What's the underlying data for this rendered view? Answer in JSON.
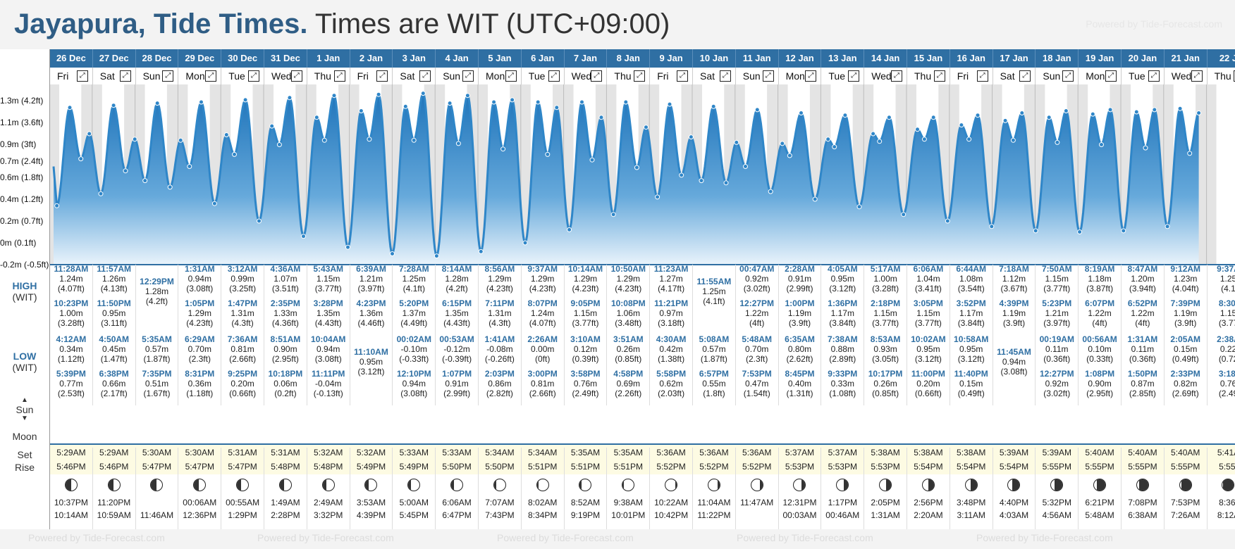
{
  "header": {
    "location": "Jayapura, Tide Times.",
    "timezone": "Times are WIT (UTC+09:00)",
    "powered_by": "Powered by Tide-Forecast.com"
  },
  "labels": {
    "high": "HIGH",
    "low": "LOW",
    "wit": "(WIT)",
    "sun": "Sun",
    "moon": "Moon",
    "set": "Set",
    "rise": "Rise"
  },
  "chart_data": {
    "type": "area",
    "title": "",
    "y_ticks": [
      "-0.2m (-0.5ft)",
      "0m (0.1ft)",
      "0.2m (0.7ft)",
      "0.4m (1.2ft)",
      "0.6m (1.8ft)",
      "0.7m (2.4ft)",
      "0.9m (3ft)",
      "1.1m (3.6ft)",
      "1.3m (4.2ft)"
    ],
    "ylim": [
      -0.2,
      1.4
    ],
    "grid": true,
    "color": "#2f86c8"
  },
  "days": [
    {
      "date": "26 Dec",
      "dow": "Fri",
      "tides": [
        {
          "k": "H",
          "t": "11:28AM",
          "m": "1.24m",
          "f": "(4.07ft)"
        },
        {
          "k": "H",
          "t": "10:23PM",
          "m": "1.00m",
          "f": "(3.28ft)"
        },
        {
          "k": "L",
          "t": "4:12AM",
          "m": "0.34m",
          "f": "(1.12ft)"
        },
        {
          "k": "L",
          "t": "5:39PM",
          "m": "0.77m",
          "f": "(2.53ft)"
        }
      ],
      "sunrise": "5:29AM",
      "sunset": "5:46PM",
      "moonset": "10:37PM",
      "moonrise": "10:14AM"
    },
    {
      "date": "27 Dec",
      "dow": "Sat",
      "tides": [
        {
          "k": "H",
          "t": "11:57AM",
          "m": "1.26m",
          "f": "(4.13ft)"
        },
        {
          "k": "H",
          "t": "11:50PM",
          "m": "0.95m",
          "f": "(3.11ft)"
        },
        {
          "k": "L",
          "t": "4:50AM",
          "m": "0.45m",
          "f": "(1.47ft)"
        },
        {
          "k": "L",
          "t": "6:38PM",
          "m": "0.66m",
          "f": "(2.17ft)"
        }
      ],
      "sunrise": "5:29AM",
      "sunset": "5:46PM",
      "moonset": "11:20PM",
      "moonrise": "10:59AM"
    },
    {
      "date": "28 Dec",
      "dow": "Sun",
      "tides": [
        {
          "k": "H",
          "t": "12:29PM",
          "m": "1.28m",
          "f": "(4.2ft)"
        },
        {
          "k": "L",
          "t": "5:35AM",
          "m": "0.57m",
          "f": "(1.87ft)"
        },
        {
          "k": "L",
          "t": "7:35PM",
          "m": "0.51m",
          "f": "(1.67ft)"
        }
      ],
      "sunrise": "5:30AM",
      "sunset": "5:47PM",
      "moonset": "",
      "moonrise": "11:46AM"
    },
    {
      "date": "29 Dec",
      "dow": "Mon",
      "tides": [
        {
          "k": "H",
          "t": "1:31AM",
          "m": "0.94m",
          "f": "(3.08ft)"
        },
        {
          "k": "H",
          "t": "1:05PM",
          "m": "1.29m",
          "f": "(4.23ft)"
        },
        {
          "k": "L",
          "t": "6:29AM",
          "m": "0.70m",
          "f": "(2.3ft)"
        },
        {
          "k": "L",
          "t": "8:31PM",
          "m": "0.36m",
          "f": "(1.18ft)"
        }
      ],
      "sunrise": "5:30AM",
      "sunset": "5:47PM",
      "moonset": "00:06AM",
      "moonrise": "12:36PM"
    },
    {
      "date": "30 Dec",
      "dow": "Tue",
      "tides": [
        {
          "k": "H",
          "t": "3:12AM",
          "m": "0.99m",
          "f": "(3.25ft)"
        },
        {
          "k": "H",
          "t": "1:47PM",
          "m": "1.31m",
          "f": "(4.3ft)"
        },
        {
          "k": "L",
          "t": "7:36AM",
          "m": "0.81m",
          "f": "(2.66ft)"
        },
        {
          "k": "L",
          "t": "9:25PM",
          "m": "0.20m",
          "f": "(0.66ft)"
        }
      ],
      "sunrise": "5:31AM",
      "sunset": "5:47PM",
      "moonset": "00:55AM",
      "moonrise": "1:29PM"
    },
    {
      "date": "31 Dec",
      "dow": "Wed",
      "tides": [
        {
          "k": "H",
          "t": "4:36AM",
          "m": "1.07m",
          "f": "(3.51ft)"
        },
        {
          "k": "H",
          "t": "2:35PM",
          "m": "1.33m",
          "f": "(4.36ft)"
        },
        {
          "k": "L",
          "t": "8:51AM",
          "m": "0.90m",
          "f": "(2.95ft)"
        },
        {
          "k": "L",
          "t": "10:18PM",
          "m": "0.06m",
          "f": "(0.2ft)"
        }
      ],
      "sunrise": "5:31AM",
      "sunset": "5:48PM",
      "moonset": "1:49AM",
      "moonrise": "2:28PM"
    },
    {
      "date": "1 Jan",
      "dow": "Thu",
      "tides": [
        {
          "k": "H",
          "t": "5:43AM",
          "m": "1.15m",
          "f": "(3.77ft)"
        },
        {
          "k": "H",
          "t": "3:28PM",
          "m": "1.35m",
          "f": "(4.43ft)"
        },
        {
          "k": "L",
          "t": "10:04AM",
          "m": "0.94m",
          "f": "(3.08ft)"
        },
        {
          "k": "L",
          "t": "11:11PM",
          "m": "-0.04m",
          "f": "(-0.13ft)"
        }
      ],
      "sunrise": "5:32AM",
      "sunset": "5:48PM",
      "moonset": "2:49AM",
      "moonrise": "3:32PM"
    },
    {
      "date": "2 Jan",
      "dow": "Fri",
      "tides": [
        {
          "k": "H",
          "t": "6:39AM",
          "m": "1.21m",
          "f": "(3.97ft)"
        },
        {
          "k": "H",
          "t": "4:23PM",
          "m": "1.36m",
          "f": "(4.46ft)"
        },
        {
          "k": "L",
          "t": "11:10AM",
          "m": "0.95m",
          "f": "(3.12ft)"
        }
      ],
      "sunrise": "5:32AM",
      "sunset": "5:49PM",
      "moonset": "3:53AM",
      "moonrise": "4:39PM"
    },
    {
      "date": "3 Jan",
      "dow": "Sat",
      "tides": [
        {
          "k": "H",
          "t": "7:28AM",
          "m": "1.25m",
          "f": "(4.1ft)"
        },
        {
          "k": "H",
          "t": "5:20PM",
          "m": "1.37m",
          "f": "(4.49ft)"
        },
        {
          "k": "L",
          "t": "00:02AM",
          "m": "-0.10m",
          "f": "(-0.33ft)"
        },
        {
          "k": "L",
          "t": "12:10PM",
          "m": "0.94m",
          "f": "(3.08ft)"
        }
      ],
      "sunrise": "5:33AM",
      "sunset": "5:49PM",
      "moonset": "5:00AM",
      "moonrise": "5:45PM"
    },
    {
      "date": "4 Jan",
      "dow": "Sun",
      "tides": [
        {
          "k": "H",
          "t": "8:14AM",
          "m": "1.28m",
          "f": "(4.2ft)"
        },
        {
          "k": "H",
          "t": "6:15PM",
          "m": "1.35m",
          "f": "(4.43ft)"
        },
        {
          "k": "L",
          "t": "00:53AM",
          "m": "-0.12m",
          "f": "(-0.39ft)"
        },
        {
          "k": "L",
          "t": "1:07PM",
          "m": "0.91m",
          "f": "(2.99ft)"
        }
      ],
      "sunrise": "5:33AM",
      "sunset": "5:50PM",
      "moonset": "6:06AM",
      "moonrise": "6:47PM"
    },
    {
      "date": "5 Jan",
      "dow": "Mon",
      "tides": [
        {
          "k": "H",
          "t": "8:56AM",
          "m": "1.29m",
          "f": "(4.23ft)"
        },
        {
          "k": "H",
          "t": "7:11PM",
          "m": "1.31m",
          "f": "(4.3ft)"
        },
        {
          "k": "L",
          "t": "1:41AM",
          "m": "-0.08m",
          "f": "(-0.26ft)"
        },
        {
          "k": "L",
          "t": "2:03PM",
          "m": "0.86m",
          "f": "(2.82ft)"
        }
      ],
      "sunrise": "5:34AM",
      "sunset": "5:50PM",
      "moonset": "7:07AM",
      "moonrise": "7:43PM"
    },
    {
      "date": "6 Jan",
      "dow": "Tue",
      "tides": [
        {
          "k": "H",
          "t": "9:37AM",
          "m": "1.29m",
          "f": "(4.23ft)"
        },
        {
          "k": "H",
          "t": "8:07PM",
          "m": "1.24m",
          "f": "(4.07ft)"
        },
        {
          "k": "L",
          "t": "2:26AM",
          "m": "0.00m",
          "f": "(0ft)"
        },
        {
          "k": "L",
          "t": "3:00PM",
          "m": "0.81m",
          "f": "(2.66ft)"
        }
      ],
      "sunrise": "5:34AM",
      "sunset": "5:51PM",
      "moonset": "8:02AM",
      "moonrise": "8:34PM"
    },
    {
      "date": "7 Jan",
      "dow": "Wed",
      "tides": [
        {
          "k": "H",
          "t": "10:14AM",
          "m": "1.29m",
          "f": "(4.23ft)"
        },
        {
          "k": "H",
          "t": "9:05PM",
          "m": "1.15m",
          "f": "(3.77ft)"
        },
        {
          "k": "L",
          "t": "3:10AM",
          "m": "0.12m",
          "f": "(0.39ft)"
        },
        {
          "k": "L",
          "t": "3:58PM",
          "m": "0.76m",
          "f": "(2.49ft)"
        }
      ],
      "sunrise": "5:35AM",
      "sunset": "5:51PM",
      "moonset": "8:52AM",
      "moonrise": "9:19PM"
    },
    {
      "date": "8 Jan",
      "dow": "Thu",
      "tides": [
        {
          "k": "H",
          "t": "10:50AM",
          "m": "1.29m",
          "f": "(4.23ft)"
        },
        {
          "k": "H",
          "t": "10:08PM",
          "m": "1.06m",
          "f": "(3.48ft)"
        },
        {
          "k": "L",
          "t": "3:51AM",
          "m": "0.26m",
          "f": "(0.85ft)"
        },
        {
          "k": "L",
          "t": "4:58PM",
          "m": "0.69m",
          "f": "(2.26ft)"
        }
      ],
      "sunrise": "5:35AM",
      "sunset": "5:51PM",
      "moonset": "9:38AM",
      "moonrise": "10:01PM"
    },
    {
      "date": "9 Jan",
      "dow": "Fri",
      "tides": [
        {
          "k": "H",
          "t": "11:23AM",
          "m": "1.27m",
          "f": "(4.17ft)"
        },
        {
          "k": "H",
          "t": "11:21PM",
          "m": "0.97m",
          "f": "(3.18ft)"
        },
        {
          "k": "L",
          "t": "4:30AM",
          "m": "0.42m",
          "f": "(1.38ft)"
        },
        {
          "k": "L",
          "t": "5:58PM",
          "m": "0.62m",
          "f": "(2.03ft)"
        }
      ],
      "sunrise": "5:36AM",
      "sunset": "5:52PM",
      "moonset": "10:22AM",
      "moonrise": "10:42PM"
    },
    {
      "date": "10 Jan",
      "dow": "Sat",
      "tides": [
        {
          "k": "H",
          "t": "11:55AM",
          "m": "1.25m",
          "f": "(4.1ft)"
        },
        {
          "k": "L",
          "t": "5:08AM",
          "m": "0.57m",
          "f": "(1.87ft)"
        },
        {
          "k": "L",
          "t": "6:57PM",
          "m": "0.55m",
          "f": "(1.8ft)"
        }
      ],
      "sunrise": "5:36AM",
      "sunset": "5:52PM",
      "moonset": "11:04AM",
      "moonrise": "11:22PM"
    },
    {
      "date": "11 Jan",
      "dow": "Sun",
      "tides": [
        {
          "k": "H",
          "t": "00:47AM",
          "m": "0.92m",
          "f": "(3.02ft)"
        },
        {
          "k": "H",
          "t": "12:27PM",
          "m": "1.22m",
          "f": "(4ft)"
        },
        {
          "k": "L",
          "t": "5:48AM",
          "m": "0.70m",
          "f": "(2.3ft)"
        },
        {
          "k": "L",
          "t": "7:53PM",
          "m": "0.47m",
          "f": "(1.54ft)"
        }
      ],
      "sunrise": "5:36AM",
      "sunset": "5:52PM",
      "moonset": "11:47AM",
      "moonrise": ""
    },
    {
      "date": "12 Jan",
      "dow": "Mon",
      "tides": [
        {
          "k": "H",
          "t": "2:28AM",
          "m": "0.91m",
          "f": "(2.99ft)"
        },
        {
          "k": "H",
          "t": "1:00PM",
          "m": "1.19m",
          "f": "(3.9ft)"
        },
        {
          "k": "L",
          "t": "6:35AM",
          "m": "0.80m",
          "f": "(2.62ft)"
        },
        {
          "k": "L",
          "t": "8:45PM",
          "m": "0.40m",
          "f": "(1.31ft)"
        }
      ],
      "sunrise": "5:37AM",
      "sunset": "5:53PM",
      "moonset": "12:31PM",
      "moonrise": "00:03AM"
    },
    {
      "date": "13 Jan",
      "dow": "Tue",
      "tides": [
        {
          "k": "H",
          "t": "4:05AM",
          "m": "0.95m",
          "f": "(3.12ft)"
        },
        {
          "k": "H",
          "t": "1:36PM",
          "m": "1.17m",
          "f": "(3.84ft)"
        },
        {
          "k": "L",
          "t": "7:38AM",
          "m": "0.88m",
          "f": "(2.89ft)"
        },
        {
          "k": "L",
          "t": "9:33PM",
          "m": "0.33m",
          "f": "(1.08ft)"
        }
      ],
      "sunrise": "5:37AM",
      "sunset": "5:53PM",
      "moonset": "1:17PM",
      "moonrise": "00:46AM"
    },
    {
      "date": "14 Jan",
      "dow": "Wed",
      "tides": [
        {
          "k": "H",
          "t": "5:17AM",
          "m": "1.00m",
          "f": "(3.28ft)"
        },
        {
          "k": "H",
          "t": "2:18PM",
          "m": "1.15m",
          "f": "(3.77ft)"
        },
        {
          "k": "L",
          "t": "8:53AM",
          "m": "0.93m",
          "f": "(3.05ft)"
        },
        {
          "k": "L",
          "t": "10:17PM",
          "m": "0.26m",
          "f": "(0.85ft)"
        }
      ],
      "sunrise": "5:38AM",
      "sunset": "5:53PM",
      "moonset": "2:05PM",
      "moonrise": "1:31AM"
    },
    {
      "date": "15 Jan",
      "dow": "Thu",
      "tides": [
        {
          "k": "H",
          "t": "6:06AM",
          "m": "1.04m",
          "f": "(3.41ft)"
        },
        {
          "k": "H",
          "t": "3:05PM",
          "m": "1.15m",
          "f": "(3.77ft)"
        },
        {
          "k": "L",
          "t": "10:02AM",
          "m": "0.95m",
          "f": "(3.12ft)"
        },
        {
          "k": "L",
          "t": "11:00PM",
          "m": "0.20m",
          "f": "(0.66ft)"
        }
      ],
      "sunrise": "5:38AM",
      "sunset": "5:54PM",
      "moonset": "2:56PM",
      "moonrise": "2:20AM"
    },
    {
      "date": "16 Jan",
      "dow": "Fri",
      "tides": [
        {
          "k": "H",
          "t": "6:44AM",
          "m": "1.08m",
          "f": "(3.54ft)"
        },
        {
          "k": "H",
          "t": "3:52PM",
          "m": "1.17m",
          "f": "(3.84ft)"
        },
        {
          "k": "L",
          "t": "10:58AM",
          "m": "0.95m",
          "f": "(3.12ft)"
        },
        {
          "k": "L",
          "t": "11:40PM",
          "m": "0.15m",
          "f": "(0.49ft)"
        }
      ],
      "sunrise": "5:38AM",
      "sunset": "5:54PM",
      "moonset": "3:48PM",
      "moonrise": "3:11AM"
    },
    {
      "date": "17 Jan",
      "dow": "Sat",
      "tides": [
        {
          "k": "H",
          "t": "7:18AM",
          "m": "1.12m",
          "f": "(3.67ft)"
        },
        {
          "k": "H",
          "t": "4:39PM",
          "m": "1.19m",
          "f": "(3.9ft)"
        },
        {
          "k": "L",
          "t": "11:45AM",
          "m": "0.94m",
          "f": "(3.08ft)"
        }
      ],
      "sunrise": "5:39AM",
      "sunset": "5:54PM",
      "moonset": "4:40PM",
      "moonrise": "4:03AM"
    },
    {
      "date": "18 Jan",
      "dow": "Sun",
      "tides": [
        {
          "k": "H",
          "t": "7:50AM",
          "m": "1.15m",
          "f": "(3.77ft)"
        },
        {
          "k": "H",
          "t": "5:23PM",
          "m": "1.21m",
          "f": "(3.97ft)"
        },
        {
          "k": "L",
          "t": "00:19AM",
          "m": "0.11m",
          "f": "(0.36ft)"
        },
        {
          "k": "L",
          "t": "12:27PM",
          "m": "0.92m",
          "f": "(3.02ft)"
        }
      ],
      "sunrise": "5:39AM",
      "sunset": "5:55PM",
      "moonset": "5:32PM",
      "moonrise": "4:56AM"
    },
    {
      "date": "19 Jan",
      "dow": "Mon",
      "tides": [
        {
          "k": "H",
          "t": "8:19AM",
          "m": "1.18m",
          "f": "(3.87ft)"
        },
        {
          "k": "H",
          "t": "6:07PM",
          "m": "1.22m",
          "f": "(4ft)"
        },
        {
          "k": "L",
          "t": "00:56AM",
          "m": "0.10m",
          "f": "(0.33ft)"
        },
        {
          "k": "L",
          "t": "1:08PM",
          "m": "0.90m",
          "f": "(2.95ft)"
        }
      ],
      "sunrise": "5:40AM",
      "sunset": "5:55PM",
      "moonset": "6:21PM",
      "moonrise": "5:48AM"
    },
    {
      "date": "20 Jan",
      "dow": "Tue",
      "tides": [
        {
          "k": "H",
          "t": "8:47AM",
          "m": "1.20m",
          "f": "(3.94ft)"
        },
        {
          "k": "H",
          "t": "6:52PM",
          "m": "1.22m",
          "f": "(4ft)"
        },
        {
          "k": "L",
          "t": "1:31AM",
          "m": "0.11m",
          "f": "(0.36ft)"
        },
        {
          "k": "L",
          "t": "1:50PM",
          "m": "0.87m",
          "f": "(2.85ft)"
        }
      ],
      "sunrise": "5:40AM",
      "sunset": "5:55PM",
      "moonset": "7:08PM",
      "moonrise": "6:38AM"
    },
    {
      "date": "21 Jan",
      "dow": "Wed",
      "tides": [
        {
          "k": "H",
          "t": "9:12AM",
          "m": "1.23m",
          "f": "(4.04ft)"
        },
        {
          "k": "H",
          "t": "7:39PM",
          "m": "1.19m",
          "f": "(3.9ft)"
        },
        {
          "k": "L",
          "t": "2:05AM",
          "m": "0.15m",
          "f": "(0.49ft)"
        },
        {
          "k": "L",
          "t": "2:33PM",
          "m": "0.82m",
          "f": "(2.69ft)"
        }
      ],
      "sunrise": "5:40AM",
      "sunset": "5:55PM",
      "moonset": "7:53PM",
      "moonrise": "7:26AM"
    },
    {
      "date": "22 J",
      "dow": "Thu",
      "tides": [
        {
          "k": "H",
          "t": "9:37A",
          "m": "1.25",
          "f": "(4.1"
        },
        {
          "k": "H",
          "t": "8:30I",
          "m": "1.15",
          "f": "(3.77"
        },
        {
          "k": "L",
          "t": "2:38A",
          "m": "0.22",
          "f": "(0.72"
        },
        {
          "k": "L",
          "t": "3:18I",
          "m": "0.76",
          "f": "(2.49"
        }
      ],
      "sunrise": "5:41A",
      "sunset": "5:55I",
      "moonset": "8:36I",
      "moonrise": "8:12A"
    }
  ]
}
